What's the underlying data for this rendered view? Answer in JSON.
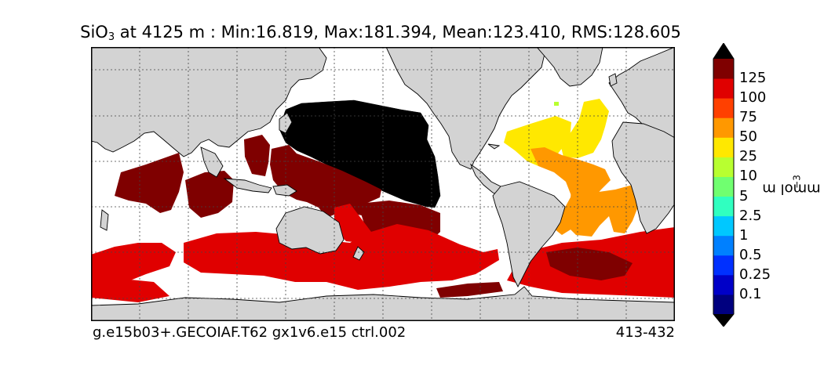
{
  "title": {
    "species": "SiO",
    "subscript": "3",
    "rest": " at 4125 m : Min:16.819, Max:181.394, Mean:123.410, RMS:128.605"
  },
  "footer": {
    "left": "g.e15b03+.GECOIAF.T62 gx1v6.e15 ctrl.002",
    "right": "413-432"
  },
  "colorbar": {
    "unit": "mmol m",
    "unit_exponent": "−3",
    "levels": [
      "125",
      "100",
      "75",
      "50",
      "25",
      "10",
      "5",
      "2.5",
      "1",
      "0.5",
      "0.25",
      "0.1"
    ],
    "colors": [
      "#00007f",
      "#0000c8",
      "#0030ff",
      "#0080ff",
      "#00c8ff",
      "#30ffc0",
      "#70ff70",
      "#b8ff30",
      "#ffe800",
      "#ff9800",
      "#ff4000",
      "#e00000",
      "#7f0000"
    ],
    "extend": "both"
  },
  "map": {
    "land_color": "#d3d3d3",
    "ocean_color": "#ffffff",
    "projection": "cylindrical",
    "gridlines": true
  }
}
